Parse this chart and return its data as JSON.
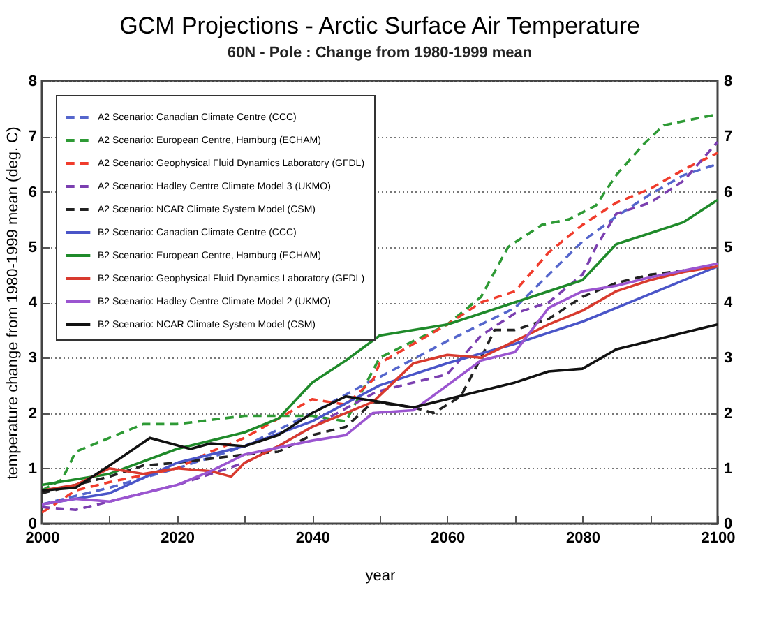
{
  "chart_data": {
    "type": "line",
    "title": "GCM Projections - Arctic Surface Air Temperature",
    "subtitle": "60N - Pole : Change from 1980-1999 mean",
    "xlabel": "year",
    "ylabel": "temperature change from 1980-1999 mean (deg. C)",
    "xlim": [
      2000,
      2100
    ],
    "xticks": [
      2000,
      {
        "value": 2010,
        "label": null
      },
      2020,
      {
        "value": 2030,
        "label": null
      },
      2040,
      {
        "value": 2050,
        "label": null
      },
      2060,
      {
        "value": 2070,
        "label": null
      },
      2080,
      {
        "value": 2090,
        "label": null
      },
      2100
    ],
    "ylim": [
      0,
      8
    ],
    "yticks": [
      0,
      1,
      2,
      3,
      4,
      5,
      6,
      7,
      8
    ],
    "y2lim": [
      0,
      8
    ],
    "y2ticks": [
      0,
      1,
      2,
      3,
      4,
      5,
      6,
      7,
      8
    ],
    "grid": "y",
    "legend": "top left",
    "series": [
      {
        "name": "A2 Scenario: Canadian Climate Centre (CCC)",
        "color": "#5566cc",
        "line_style": "dashed",
        "x": [
          2000,
          2010,
          2020,
          2030,
          2040,
          2049,
          2050,
          2060,
          2070,
          2075,
          2080,
          2085,
          2090,
          2095,
          2100
        ],
        "values": [
          0.35,
          0.65,
          1.0,
          1.4,
          2.0,
          2.6,
          2.65,
          3.3,
          3.9,
          4.5,
          5.1,
          5.55,
          5.95,
          6.3,
          6.5
        ]
      },
      {
        "name": "A2 Scenario: European Centre, Hamburg (ECHAM)",
        "color": "#2e9a35",
        "line_style": "dashed",
        "x": [
          2000,
          2003,
          2005,
          2010,
          2015,
          2020,
          2030,
          2040,
          2045,
          2050,
          2060,
          2065,
          2069,
          2074,
          2078,
          2082,
          2085,
          2089,
          2092,
          2100
        ],
        "values": [
          0.6,
          0.8,
          1.3,
          1.55,
          1.8,
          1.8,
          1.95,
          1.95,
          1.85,
          3.0,
          3.6,
          4.1,
          5.0,
          5.4,
          5.5,
          5.75,
          6.3,
          6.85,
          7.2,
          7.4
        ]
      },
      {
        "name": "A2 Scenario: Geophysical Fluid Dynamics Laboratory (GFDL)",
        "color": "#f03c2c",
        "line_style": "dashed",
        "x": [
          2000,
          2005,
          2010,
          2020,
          2025,
          2030,
          2035,
          2040,
          2045,
          2049,
          2050,
          2060,
          2065,
          2070,
          2075,
          2080,
          2085,
          2090,
          2095,
          2100
        ],
        "values": [
          0.2,
          0.6,
          0.75,
          1.0,
          1.3,
          1.55,
          1.9,
          2.25,
          2.15,
          2.6,
          2.9,
          3.6,
          4.0,
          4.2,
          4.9,
          5.4,
          5.8,
          6.05,
          6.4,
          6.7
        ]
      },
      {
        "name": "A2 Scenario: Hadley Centre Climate Model 3 (UKMO)",
        "color": "#7b3fb0",
        "line_style": "dashed",
        "x": [
          2000,
          2005,
          2010,
          2020,
          2030,
          2035,
          2040,
          2049,
          2050,
          2060,
          2065,
          2070,
          2075,
          2080,
          2082,
          2085,
          2090,
          2095,
          2100
        ],
        "values": [
          0.3,
          0.25,
          0.4,
          0.7,
          1.1,
          1.4,
          1.75,
          2.35,
          2.4,
          2.7,
          3.4,
          3.8,
          4.0,
          4.5,
          5.0,
          5.6,
          5.8,
          6.2,
          6.9
        ]
      },
      {
        "name": "A2 Scenario: NCAR Climate System Model (CSM)",
        "color": "#222222",
        "line_style": "dashed",
        "x": [
          2000,
          2010,
          2015,
          2020,
          2030,
          2035,
          2040,
          2045,
          2049,
          2055,
          2058,
          2062,
          2065,
          2067,
          2070,
          2075,
          2080,
          2085,
          2090,
          2100
        ],
        "values": [
          0.55,
          0.85,
          1.05,
          1.1,
          1.25,
          1.3,
          1.6,
          1.75,
          2.2,
          2.1,
          2.0,
          2.3,
          3.0,
          3.5,
          3.5,
          3.7,
          4.1,
          4.35,
          4.5,
          4.65
        ]
      },
      {
        "name": "B2 Scenario: Canadian Climate Centre (CCC)",
        "color": "#4a55c8",
        "line_style": "solid",
        "x": [
          2000,
          2010,
          2020,
          2030,
          2040,
          2050,
          2060,
          2070,
          2080,
          2090,
          2100
        ],
        "values": [
          0.35,
          0.55,
          1.1,
          1.4,
          1.85,
          2.5,
          2.9,
          3.25,
          3.65,
          4.15,
          4.65
        ]
      },
      {
        "name": "B2 Scenario: European Centre, Hamburg (ECHAM)",
        "color": "#1f8a2a",
        "line_style": "solid",
        "x": [
          2000,
          2010,
          2020,
          2030,
          2035,
          2040,
          2045,
          2050,
          2060,
          2070,
          2080,
          2085,
          2090,
          2095,
          2100
        ],
        "values": [
          0.7,
          0.9,
          1.35,
          1.65,
          1.9,
          2.55,
          2.95,
          3.4,
          3.6,
          4.0,
          4.4,
          5.05,
          5.25,
          5.45,
          5.85
        ]
      },
      {
        "name": "B2 Scenario: Geophysical Fluid Dynamics Laboratory (GFDL)",
        "color": "#d83a2e",
        "line_style": "solid",
        "x": [
          2000,
          2005,
          2010,
          2015,
          2020,
          2025,
          2028,
          2030,
          2035,
          2040,
          2049,
          2055,
          2060,
          2065,
          2070,
          2075,
          2080,
          2085,
          2090,
          2095,
          2100
        ],
        "values": [
          0.6,
          0.7,
          1.0,
          0.9,
          1.0,
          0.95,
          0.85,
          1.1,
          1.4,
          1.75,
          2.2,
          2.9,
          3.05,
          3.0,
          3.3,
          3.6,
          3.85,
          4.2,
          4.4,
          4.55,
          4.65
        ]
      },
      {
        "name": "B2 Scenario: Hadley Centre Climate Model 2 (UKMO)",
        "color": "#9b55d0",
        "line_style": "solid",
        "x": [
          2000,
          2005,
          2010,
          2015,
          2020,
          2025,
          2030,
          2040,
          2045,
          2049,
          2055,
          2060,
          2065,
          2070,
          2075,
          2080,
          2085,
          2090,
          2100
        ],
        "values": [
          0.35,
          0.45,
          0.4,
          0.55,
          0.7,
          0.95,
          1.25,
          1.5,
          1.6,
          2.0,
          2.05,
          2.5,
          2.95,
          3.1,
          3.9,
          4.2,
          4.3,
          4.45,
          4.7
        ]
      },
      {
        "name": "B2 Scenario: NCAR Climate System Model (CSM)",
        "color": "#111111",
        "line_style": "solid",
        "x": [
          2000,
          2005,
          2010,
          2016,
          2022,
          2025,
          2030,
          2035,
          2040,
          2045,
          2050,
          2055,
          2060,
          2065,
          2070,
          2075,
          2080,
          2085,
          2090,
          2095,
          2100
        ],
        "values": [
          0.6,
          0.65,
          1.05,
          1.55,
          1.35,
          1.45,
          1.4,
          1.6,
          2.0,
          2.3,
          2.2,
          2.1,
          2.25,
          2.4,
          2.55,
          2.75,
          2.8,
          3.15,
          3.3,
          3.45,
          3.6
        ]
      }
    ]
  }
}
